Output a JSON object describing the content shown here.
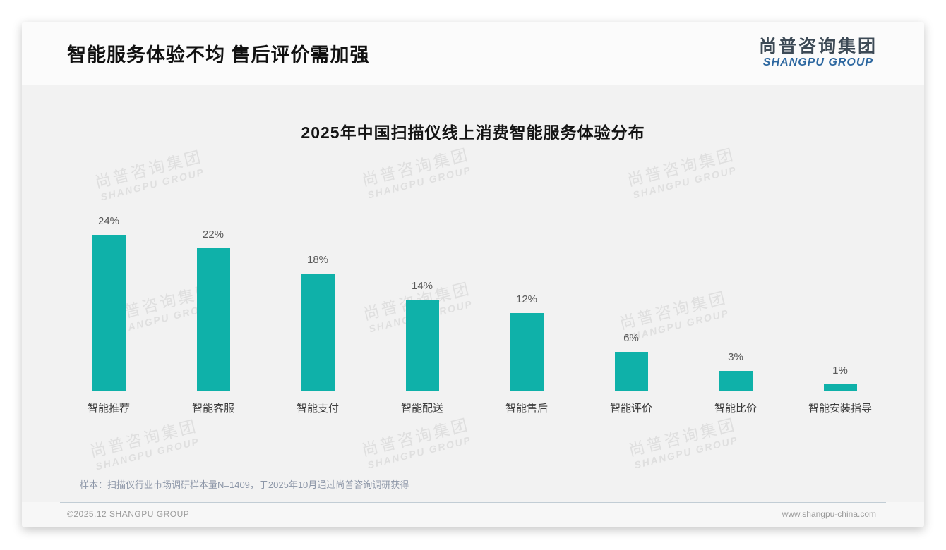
{
  "header": {
    "title": "智能服务体验不均 售后评价需加强"
  },
  "logo": {
    "cn": "尚普咨询集团",
    "en": "SHANGPU GROUP"
  },
  "watermark": {
    "cn": "尚普咨询集团",
    "en": "SHANGPU GROUP"
  },
  "chart_data": {
    "type": "bar",
    "title": "2025年中国扫描仪线上消费智能服务体验分布",
    "categories": [
      "智能推荐",
      "智能客服",
      "智能支付",
      "智能配送",
      "智能售后",
      "智能评价",
      "智能比价",
      "智能安装指导"
    ],
    "values": [
      24,
      22,
      18,
      14,
      12,
      6,
      3,
      1
    ],
    "value_labels": [
      "24%",
      "22%",
      "18%",
      "14%",
      "12%",
      "6%",
      "3%",
      "1%"
    ],
    "unit": "%",
    "xlabel": "",
    "ylabel": "",
    "ylim": [
      0,
      26
    ],
    "grid": false,
    "legend": false,
    "bar_color": "#0fb1a9"
  },
  "note": {
    "text": "样本：扫描仪行业市场调研样本量N=1409，于2025年10月通过尚普咨询调研获得"
  },
  "footer": {
    "left": "©2025.12 SHANGPU GROUP",
    "right": "www.shangpu-china.com"
  }
}
